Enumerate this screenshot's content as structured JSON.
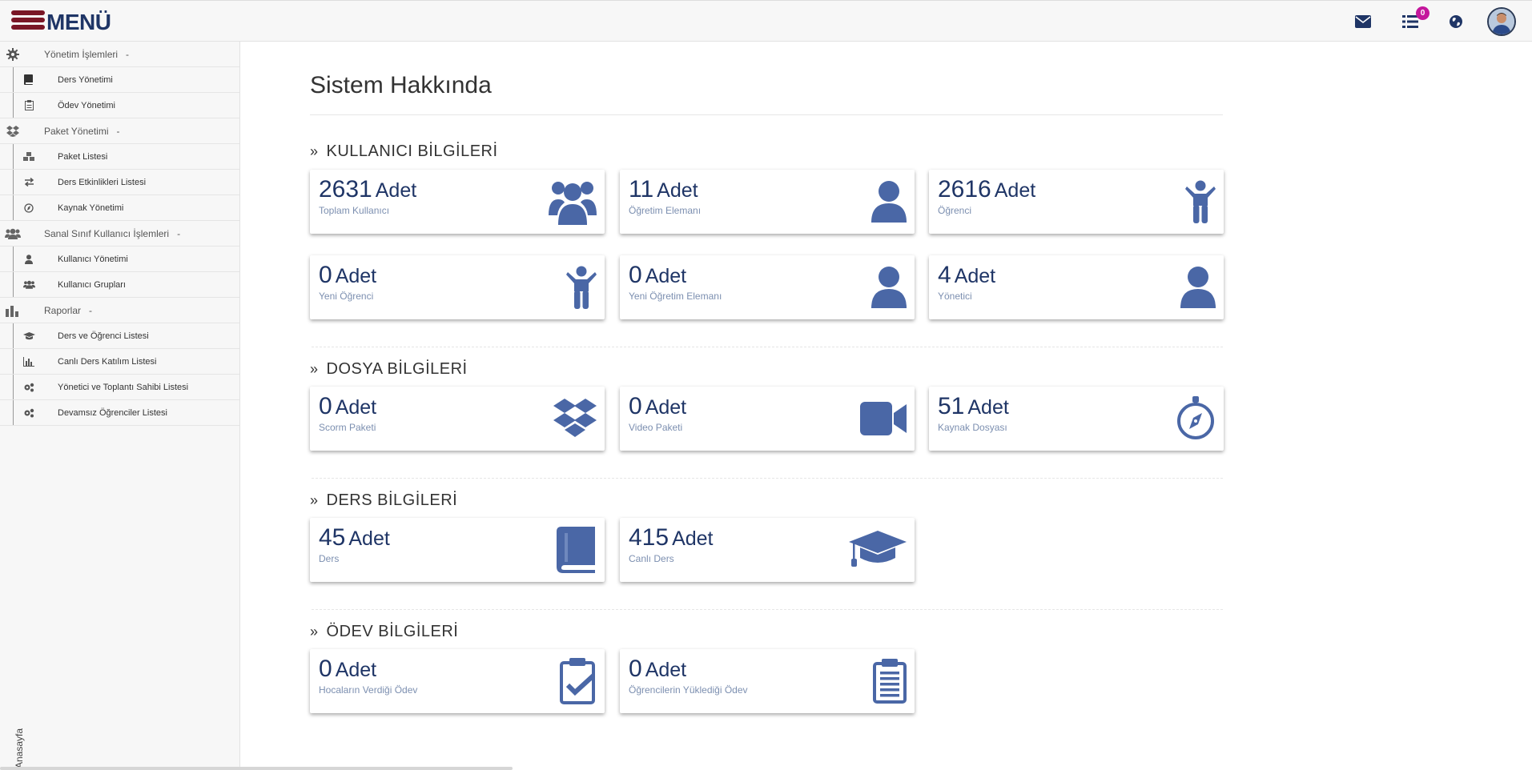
{
  "header": {
    "menu_label": "MENÜ",
    "icons": [
      "mail-icon",
      "list-icon",
      "globe-icon"
    ],
    "notification_count": "0"
  },
  "sidebar": {
    "groups": [
      {
        "label": "Yönetim İşlemleri",
        "toggle": "-",
        "icon": "gear-icon",
        "items": [
          {
            "label": "Ders Yönetimi",
            "icon": "book-icon"
          },
          {
            "label": "Ödev Yönetimi",
            "icon": "clipboard-icon"
          }
        ]
      },
      {
        "label": "Paket Yönetimi",
        "toggle": "-",
        "icon": "dropbox-icon",
        "items": [
          {
            "label": "Paket Listesi",
            "icon": "cubes-icon"
          },
          {
            "label": "Ders Etkinlikleri Listesi",
            "icon": "exchange-icon"
          },
          {
            "label": "Kaynak Yönetimi",
            "icon": "compass-icon"
          }
        ]
      },
      {
        "label": "Sanal Sınıf Kullanıcı İşlemleri",
        "toggle": "-",
        "icon": "users-icon",
        "items": [
          {
            "label": "Kullanıcı Yönetimi",
            "icon": "user-icon"
          },
          {
            "label": "Kullanıcı Grupları",
            "icon": "users-icon"
          }
        ]
      },
      {
        "label": "Raporlar",
        "toggle": "-",
        "icon": "bar-chart-icon",
        "items": [
          {
            "label": "Ders ve Öğrenci Listesi",
            "icon": "graduation-cap-icon"
          },
          {
            "label": "Canlı Ders Katılım Listesi",
            "icon": "bar-chart-icon"
          },
          {
            "label": "Yönetici ve Toplantı Sahibi Listesi",
            "icon": "gears-icon"
          },
          {
            "label": "Devamsız Öğrenciler Listesi",
            "icon": "gears-icon"
          }
        ]
      }
    ],
    "footer_label": "Anasayfa"
  },
  "main": {
    "title": "Sistem Hakkında",
    "unit": "Adet",
    "sections": [
      {
        "title": "KULLANICI BİLGİLERİ",
        "chevron": "»",
        "cards": [
          {
            "value": "2631",
            "label": "Toplam Kullanıcı",
            "icon": "users-icon"
          },
          {
            "value": "11",
            "label": "Öğretim Elemanı",
            "icon": "user-icon"
          },
          {
            "value": "2616",
            "label": "Öğrenci",
            "icon": "child-icon"
          },
          {
            "value": "0",
            "label": "Yeni Öğrenci",
            "icon": "child-icon"
          },
          {
            "value": "0",
            "label": "Yeni Öğretim Elemanı",
            "icon": "user-icon"
          },
          {
            "value": "4",
            "label": "Yönetici",
            "icon": "user-icon"
          }
        ]
      },
      {
        "title": "DOSYA BİLGİLERİ",
        "chevron": "»",
        "cards": [
          {
            "value": "0",
            "label": "Scorm Paketi",
            "icon": "dropbox-icon"
          },
          {
            "value": "0",
            "label": "Video Paketi",
            "icon": "video-camera-icon"
          },
          {
            "value": "51",
            "label": "Kaynak Dosyası",
            "icon": "compass-icon"
          }
        ]
      },
      {
        "title": "DERS BİLGİLERİ",
        "chevron": "»",
        "cards": [
          {
            "value": "45",
            "label": "Ders",
            "icon": "book-icon"
          },
          {
            "value": "415",
            "label": "Canlı Ders",
            "icon": "graduation-cap-icon"
          }
        ]
      },
      {
        "title": "ÖDEV BİLGİLERİ",
        "chevron": "»",
        "cards": [
          {
            "value": "0",
            "label": "Hocaların Verdiği Ödev",
            "icon": "clipboard-check-icon"
          },
          {
            "value": "0",
            "label": "Öğrencilerin Yüklediği Ödev",
            "icon": "clipboard-list-icon"
          }
        ]
      }
    ]
  },
  "colors": {
    "accent": "#1f3566",
    "icon_blue": "#4a67a6",
    "brand_red": "#7a1626",
    "badge": "#c4179c"
  }
}
